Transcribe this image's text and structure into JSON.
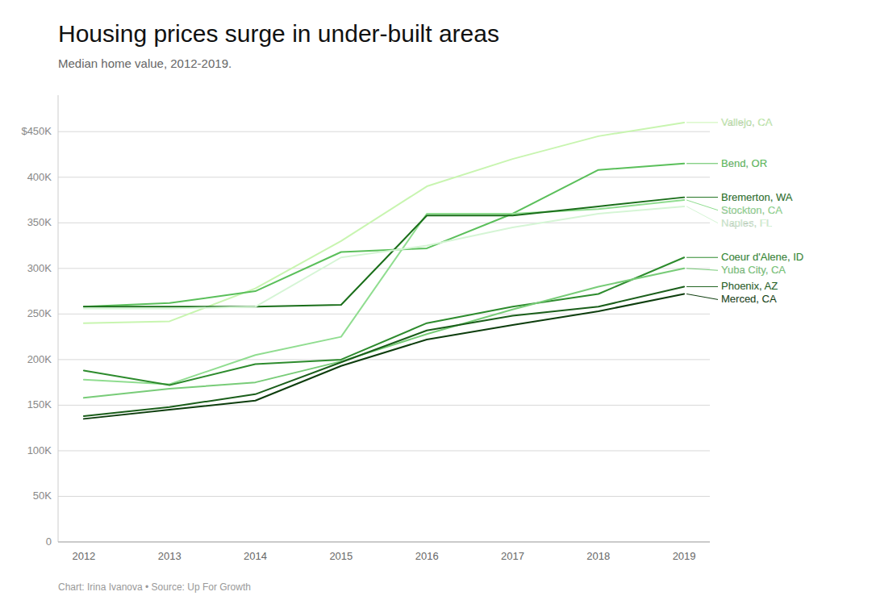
{
  "chart_data": {
    "type": "line",
    "title": "Housing prices surge in under-built areas",
    "subtitle": "Median home value, 2012-2019.",
    "footnote": "Chart: Irina Ivanova • Source: Up For Growth",
    "x": [
      2012,
      2013,
      2014,
      2015,
      2016,
      2017,
      2018,
      2019
    ],
    "xlim": [
      2011.7,
      2019.3
    ],
    "xticks": [
      2012,
      2013,
      2014,
      2015,
      2016,
      2017,
      2018,
      2019
    ],
    "ylim": [
      0,
      490000
    ],
    "yticks": [
      0,
      {
        "value": 50000,
        "label": "50K"
      },
      {
        "value": 100000,
        "label": "100K"
      },
      {
        "value": 150000,
        "label": "150K"
      },
      {
        "value": 200000,
        "label": "200K"
      },
      {
        "value": 250000,
        "label": "250K"
      },
      {
        "value": 300000,
        "label": "300K"
      },
      {
        "value": 350000,
        "label": "350K"
      },
      {
        "value": 400000,
        "label": "400K"
      },
      {
        "value": 450000,
        "label": "$450K"
      }
    ],
    "grid": true,
    "series": [
      {
        "name": "Vallejo, CA",
        "color": "#c8f5b0",
        "values": [
          240000,
          242000,
          278000,
          330000,
          390000,
          420000,
          445000,
          460000
        ]
      },
      {
        "name": "Bend, OR",
        "color": "#5abf5a",
        "values": [
          258000,
          262000,
          275000,
          318000,
          322000,
          360000,
          408000,
          415000
        ]
      },
      {
        "name": "Stockton, CA",
        "color": "#90dd90",
        "values": [
          178000,
          173000,
          205000,
          225000,
          360000,
          360000,
          365000,
          375000
        ]
      },
      {
        "name": "Bremerton, WA",
        "color": "#1a6e1a",
        "values": [
          258000,
          258000,
          258000,
          260000,
          358000,
          358000,
          368000,
          378000
        ]
      },
      {
        "name": "Naples, FL",
        "color": "#d5f5d5",
        "values": [
          256000,
          256000,
          258000,
          312000,
          325000,
          345000,
          360000,
          368000
        ]
      },
      {
        "name": "Coeur d'Alene, ID",
        "color": "#2d8b2d",
        "values": [
          188000,
          172000,
          195000,
          200000,
          240000,
          258000,
          272000,
          312000
        ]
      },
      {
        "name": "Yuba City, CA",
        "color": "#78cc78",
        "values": [
          158000,
          168000,
          175000,
          198000,
          228000,
          255000,
          280000,
          300000
        ]
      },
      {
        "name": "Phoenix, AZ",
        "color": "#1a5e1a",
        "values": [
          138000,
          148000,
          162000,
          197000,
          232000,
          248000,
          258000,
          280000
        ]
      },
      {
        "name": "Merced, CA",
        "color": "#0d3d0d",
        "values": [
          135000,
          145000,
          155000,
          193000,
          222000,
          238000,
          253000,
          272000
        ]
      }
    ]
  }
}
